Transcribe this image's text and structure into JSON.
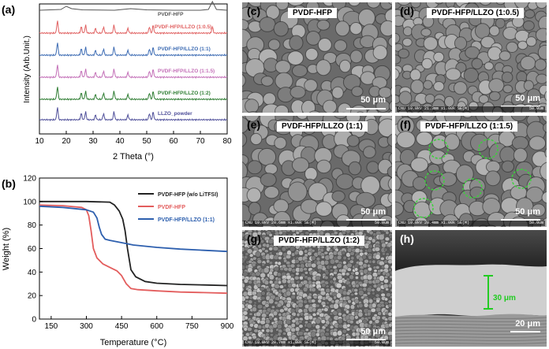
{
  "xrd": {
    "label": "(a)",
    "xlabel": "2 Theta (°)",
    "ylabel": "Intensity (Arb.Unit.)",
    "xticks": [
      "10",
      "20",
      "30",
      "40",
      "50",
      "60",
      "70",
      "80"
    ],
    "colors": [
      "#555555",
      "#e06060",
      "#3c6bb3",
      "#c36fb7",
      "#2e7d32",
      "#4f4f9a"
    ]
  },
  "tga": {
    "label": "(b)",
    "xlabel": "Temperature (°C)",
    "ylabel": "Weight (%)",
    "xticks": [
      "150",
      "300",
      "450",
      "600",
      "750",
      "900"
    ],
    "yticks": [
      "0",
      "20",
      "40",
      "60",
      "80",
      "100",
      "120"
    ],
    "colors": [
      "#222222",
      "#e35d5d",
      "#2d5fae"
    ]
  },
  "sem": [
    {
      "label": "(c)",
      "title": "PVDF-HFP",
      "scale": "50 μm",
      "info_left": "",
      "info_right": ""
    },
    {
      "label": "(d)",
      "title": "PVDF-HFP/LLZO (1:0.5)",
      "scale": "50 μm",
      "info_left": "CNU 10.0kV 21.3mm x1.00k SE(M)",
      "info_right": "50.0um"
    },
    {
      "label": "(e)",
      "title": "PVDF-HFP/LLZO (1:1)",
      "scale": "50 μm",
      "info_left": "CNU 10.0kV 20.6mm x1.00k SE(M)",
      "info_right": "50.0um"
    },
    {
      "label": "(f)",
      "title": "PVDF-HFP/LLZO (1:1.5)",
      "scale": "50 μm",
      "info_left": "CNU 10.0kV 20.4mm x1.00k SE(M)",
      "info_right": "50.0um"
    },
    {
      "label": "(g)",
      "title": "PVDF-HFP/LLZO (1:2)",
      "scale": "50 μm",
      "info_left": "CNU 10.0kV 20.7mm x1.00k SE(M)",
      "info_right": "50.0um"
    },
    {
      "label": "(h)",
      "title": "",
      "scale": "20 μm",
      "thickness": "30 μm",
      "info_left": "",
      "info_right": ""
    }
  ],
  "chart_data": [
    {
      "type": "line",
      "xlabel": "2 Theta (°)",
      "ylabel": "Intensity (Arb.Unit.)",
      "xlim": [
        10,
        80
      ],
      "grid": false,
      "series": [
        {
          "name": "PVDF-HFP",
          "offset": 5,
          "x": [
            10,
            18,
            20,
            22,
            26,
            38,
            44,
            50,
            60,
            70,
            73,
            74.5,
            76,
            80
          ],
          "y": [
            0.1,
            0.2,
            0.6,
            0.3,
            0.15,
            0.1,
            0.3,
            0.15,
            0.1,
            0.1,
            0.2,
            1.2,
            0.2,
            0.1
          ]
        },
        {
          "name": "PVDF-HFP/LLZO (1:0.5)",
          "offset": 4,
          "peaks": [
            16.7,
            25.6,
            27.2,
            30.9,
            33.9,
            37.8,
            43.0,
            51.0,
            52.4,
            74.5
          ]
        },
        {
          "name": "PVDF-HFP/LLZO (1:1)",
          "offset": 3,
          "peaks": [
            16.7,
            25.6,
            27.2,
            30.9,
            33.9,
            37.8,
            43.0,
            51.0,
            52.4
          ]
        },
        {
          "name": "PVDF-HFP/LLZO (1:1.5)",
          "offset": 2,
          "peaks": [
            16.7,
            25.6,
            27.2,
            30.9,
            33.9,
            37.8,
            43.0,
            51.0,
            52.4
          ]
        },
        {
          "name": "PVDF-HFP/LLZO (1:2)",
          "offset": 1,
          "peaks": [
            16.7,
            25.6,
            27.2,
            30.9,
            33.9,
            37.8,
            43.0,
            51.0,
            52.4
          ]
        },
        {
          "name": "LLZO_powder",
          "offset": 0,
          "peaks": [
            16.7,
            25.6,
            27.2,
            30.9,
            33.9,
            37.8,
            43.0,
            51.0,
            52.4
          ]
        }
      ],
      "legend": "labels next to each trace"
    },
    {
      "type": "line",
      "xlabel": "Temperature (°C)",
      "ylabel": "Weight (%)",
      "xlim": [
        100,
        900
      ],
      "ylim": [
        0,
        120
      ],
      "grid": false,
      "legend": "top-right",
      "series": [
        {
          "name": "PVDF-HFP (w/o LiTFSI)",
          "x": [
            100,
            200,
            300,
            400,
            420,
            440,
            455,
            465,
            475,
            490,
            510,
            550,
            600,
            700,
            800,
            900
          ],
          "y": [
            100,
            100,
            100,
            99.5,
            97,
            92,
            85,
            75,
            60,
            42,
            36,
            32,
            30.5,
            29.5,
            29,
            28.5
          ]
        },
        {
          "name": "PVDF-HFP",
          "x": [
            100,
            200,
            280,
            300,
            310,
            320,
            330,
            345,
            370,
            400,
            430,
            450,
            470,
            490,
            520,
            600,
            700,
            800,
            900
          ],
          "y": [
            97,
            96.5,
            95,
            93,
            88,
            75,
            60,
            52,
            47,
            44,
            41,
            37,
            30,
            26,
            25,
            24,
            23,
            22.5,
            22
          ]
        },
        {
          "name": "PVDF-HFP/LLZO (1:1)",
          "x": [
            100,
            200,
            300,
            330,
            345,
            355,
            365,
            380,
            400,
            450,
            500,
            600,
            700,
            800,
            900
          ],
          "y": [
            96,
            95,
            93,
            91,
            86,
            78,
            72,
            68,
            67,
            65,
            63,
            61,
            59.5,
            58.5,
            57.5
          ]
        }
      ]
    }
  ]
}
